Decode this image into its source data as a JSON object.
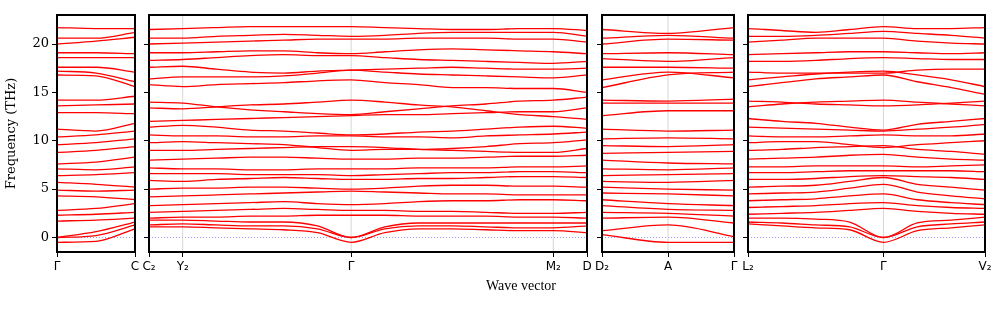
{
  "chart_data": [
    {
      "type": "line",
      "ylabel": "Frequency (THz)",
      "ylim": [
        -1.5,
        23
      ],
      "yticks": [
        0,
        5,
        10,
        15,
        20
      ],
      "categories": [
        "Γ",
        null,
        "C"
      ],
      "legend": false,
      "marker": "none",
      "line_style": "solid",
      "ref_lines": [
        {
          "axis": "y",
          "value": 0,
          "color": "#8080ff",
          "line_style": "dotted"
        }
      ],
      "series": [
        {
          "color": "#ff0000",
          "values": [
            -0.5,
            -0.4,
            0.9
          ]
        },
        {
          "color": "#ff0000",
          "values": [
            0,
            0.2,
            1.3
          ]
        },
        {
          "color": "#ff0000",
          "values": [
            0,
            0.6,
            1.6
          ]
        },
        {
          "color": "#ff0000",
          "values": [
            1.7,
            1.8,
            2.0
          ]
        },
        {
          "color": "#ff0000",
          "values": [
            2.3,
            2.4,
            2.6
          ]
        },
        {
          "color": "#ff0000",
          "values": [
            2.8,
            3.0,
            3.5
          ]
        },
        {
          "color": "#ff0000",
          "values": [
            4.3,
            4.2,
            3.9
          ]
        },
        {
          "color": "#ff0000",
          "values": [
            4.9,
            4.8,
            4.9
          ]
        },
        {
          "color": "#ff0000",
          "values": [
            5.7,
            5.5,
            5.2
          ]
        },
        {
          "color": "#ff0000",
          "values": [
            6.4,
            6.5,
            6.7
          ]
        },
        {
          "color": "#ff0000",
          "values": [
            7.1,
            7.0,
            7.3
          ]
        },
        {
          "color": "#ff0000",
          "values": [
            7.6,
            7.8,
            8.3
          ]
        },
        {
          "color": "#ff0000",
          "values": [
            8.8,
            9.0,
            9.4
          ]
        },
        {
          "color": "#ff0000",
          "values": [
            9.6,
            9.8,
            10.2
          ]
        },
        {
          "color": "#ff0000",
          "values": [
            10.4,
            10.6,
            11.0
          ]
        },
        {
          "color": "#ff0000",
          "values": [
            11.2,
            11.0,
            11.8
          ]
        },
        {
          "color": "#ff0000",
          "values": [
            12.9,
            12.9,
            12.8
          ]
        },
        {
          "color": "#ff0000",
          "values": [
            13.6,
            13.7,
            13.8
          ]
        },
        {
          "color": "#ff0000",
          "values": [
            14.2,
            14.2,
            14.6
          ]
        },
        {
          "color": "#ff0000",
          "values": [
            16.8,
            16.7,
            15.6
          ]
        },
        {
          "color": "#ff0000",
          "values": [
            17.2,
            17.0,
            16.1
          ]
        },
        {
          "color": "#ff0000",
          "values": [
            17.6,
            17.6,
            17.1
          ]
        },
        {
          "color": "#ff0000",
          "values": [
            18.6,
            18.6,
            18.6
          ]
        },
        {
          "color": "#ff0000",
          "values": [
            19.1,
            19.1,
            19.0
          ]
        },
        {
          "color": "#ff0000",
          "values": [
            20.0,
            20.3,
            20.7
          ]
        },
        {
          "color": "#ff0000",
          "values": [
            20.6,
            20.6,
            21.2
          ]
        },
        {
          "color": "#ff0000",
          "values": [
            21.7,
            21.6,
            21.6
          ]
        }
      ]
    },
    {
      "type": "line",
      "xlabel": "Wave vector",
      "ylim": [
        -1.5,
        23
      ],
      "yticks": [
        0,
        5,
        10,
        15,
        20
      ],
      "categories": [
        "C₂",
        "Y₂",
        null,
        null,
        null,
        null,
        "Γ",
        null,
        null,
        null,
        null,
        null,
        "M₂",
        "D"
      ],
      "tick_labels": "x",
      "legend": false,
      "marker": "none",
      "line_style": "solid",
      "ref_lines": [
        {
          "axis": "y",
          "value": 0,
          "color": "#8080ff",
          "line_style": "dotted"
        },
        {
          "axis": "x",
          "value": "Y₂",
          "color": "#cccccc",
          "line_style": "solid"
        },
        {
          "axis": "x",
          "value": "Γ",
          "color": "#cccccc",
          "line_style": "solid"
        },
        {
          "axis": "x",
          "value": "M₂",
          "color": "#cccccc",
          "line_style": "solid"
        }
      ],
      "series": [
        {
          "color": "#ff0000",
          "values": [
            1.1,
            1.1,
            1.0,
            0.9,
            0.8,
            0.5,
            -0.5,
            0.5,
            0.9,
            0.9,
            0.8,
            0.7,
            0.7,
            0.5
          ]
        },
        {
          "color": "#ff0000",
          "values": [
            1.3,
            1.4,
            1.3,
            1.2,
            1.2,
            0.9,
            0,
            0.9,
            1.2,
            1.2,
            1.1,
            1.0,
            1.0,
            1.2
          ]
        },
        {
          "color": "#ff0000",
          "values": [
            1.8,
            1.8,
            1.7,
            1.6,
            1.6,
            1.2,
            0,
            1.1,
            1.5,
            1.5,
            1.5,
            1.5,
            1.5,
            1.5
          ]
        },
        {
          "color": "#ff0000",
          "values": [
            2.0,
            2.1,
            2.1,
            2.2,
            2.2,
            2.3,
            2.3,
            2.3,
            2.2,
            2.2,
            2.2,
            2.1,
            2.1,
            2.0
          ]
        },
        {
          "color": "#ff0000",
          "values": [
            2.6,
            2.7,
            2.8,
            2.9,
            3.0,
            2.9,
            2.8,
            2.8,
            2.7,
            2.7,
            2.6,
            2.5,
            2.5,
            2.6
          ]
        },
        {
          "color": "#ff0000",
          "values": [
            3.3,
            3.4,
            3.5,
            3.6,
            3.7,
            3.5,
            3.4,
            3.5,
            3.7,
            3.8,
            3.8,
            3.9,
            3.9,
            3.8
          ]
        },
        {
          "color": "#ff0000",
          "values": [
            4.2,
            4.3,
            4.4,
            4.5,
            4.6,
            4.7,
            4.8,
            4.7,
            4.6,
            4.5,
            4.5,
            4.4,
            4.4,
            4.4
          ]
        },
        {
          "color": "#ff0000",
          "values": [
            5.0,
            5.1,
            5.1,
            5.2,
            5.2,
            5.1,
            5.0,
            5.1,
            5.3,
            5.4,
            5.4,
            5.3,
            5.3,
            5.2
          ]
        },
        {
          "color": "#ff0000",
          "values": [
            5.9,
            5.8,
            6.0,
            6.1,
            6.2,
            6.1,
            6.0,
            6.0,
            6.1,
            6.1,
            6.2,
            6.3,
            6.3,
            6.2
          ]
        },
        {
          "color": "#ff0000",
          "values": [
            6.6,
            6.6,
            6.6,
            6.5,
            6.5,
            6.5,
            6.4,
            6.5,
            6.6,
            6.7,
            6.7,
            6.8,
            6.8,
            6.7
          ]
        },
        {
          "color": "#ff0000",
          "values": [
            7.2,
            7.1,
            7.1,
            7.0,
            7.0,
            7.1,
            7.1,
            7.1,
            7.2,
            7.2,
            7.2,
            7.3,
            7.3,
            7.4
          ]
        },
        {
          "color": "#ff0000",
          "values": [
            8.0,
            8.1,
            8.2,
            8.3,
            8.3,
            8.2,
            8.1,
            8.1,
            8.2,
            8.2,
            8.3,
            8.4,
            8.4,
            8.5
          ]
        },
        {
          "color": "#ff0000",
          "values": [
            9.0,
            9.0,
            9.1,
            9.2,
            9.3,
            9.4,
            9.4,
            9.3,
            9.1,
            9.0,
            8.9,
            8.8,
            8.8,
            9.2
          ]
        },
        {
          "color": "#ff0000",
          "values": [
            9.8,
            9.9,
            9.8,
            9.7,
            9.6,
            9.3,
            9.0,
            9.1,
            9.1,
            9.2,
            9.4,
            9.7,
            9.8,
            10.1
          ]
        },
        {
          "color": "#ff0000",
          "values": [
            10.6,
            10.5,
            10.5,
            10.4,
            10.4,
            10.5,
            10.5,
            10.4,
            10.4,
            10.3,
            10.5,
            10.6,
            10.7,
            10.9
          ]
        },
        {
          "color": "#ff0000",
          "values": [
            11.4,
            11.6,
            11.4,
            11.1,
            11.0,
            10.8,
            10.6,
            10.7,
            10.9,
            11.0,
            11.2,
            11.4,
            11.5,
            11.3
          ]
        },
        {
          "color": "#ff0000",
          "values": [
            12.0,
            12.1,
            12.2,
            12.3,
            12.4,
            12.5,
            12.6,
            12.7,
            12.7,
            12.8,
            12.9,
            13.0,
            13.0,
            13.4
          ]
        },
        {
          "color": "#ff0000",
          "values": [
            13.4,
            13.3,
            13.5,
            13.7,
            13.8,
            14.0,
            14.2,
            14.0,
            13.7,
            13.5,
            13.1,
            12.7,
            12.5,
            12.2
          ]
        },
        {
          "color": "#ff0000",
          "values": [
            14.0,
            13.9,
            13.5,
            13.2,
            13.0,
            12.8,
            12.7,
            13.0,
            13.3,
            13.6,
            13.8,
            14.1,
            14.2,
            14.5
          ]
        },
        {
          "color": "#ff0000",
          "values": [
            15.8,
            15.6,
            15.8,
            15.9,
            16.0,
            16.2,
            16.3,
            16.0,
            15.8,
            15.5,
            15.5,
            15.4,
            15.4,
            15.0
          ]
        },
        {
          "color": "#ff0000",
          "values": [
            16.4,
            16.6,
            16.6,
            16.6,
            16.7,
            17.0,
            17.3,
            17.1,
            16.9,
            16.8,
            16.7,
            16.6,
            16.5,
            16.8
          ]
        },
        {
          "color": "#ff0000",
          "values": [
            17.6,
            17.7,
            17.4,
            17.1,
            17.0,
            17.2,
            17.3,
            17.4,
            17.5,
            17.6,
            17.5,
            17.4,
            17.4,
            17.5
          ]
        },
        {
          "color": "#ff0000",
          "values": [
            18.3,
            18.4,
            18.6,
            18.8,
            18.9,
            18.8,
            18.8,
            18.6,
            18.4,
            18.3,
            18.2,
            18.1,
            18.0,
            18.2
          ]
        },
        {
          "color": "#ff0000",
          "values": [
            19.1,
            19.1,
            19.2,
            19.3,
            19.3,
            19.1,
            19.0,
            19.2,
            19.4,
            19.5,
            19.4,
            19.3,
            19.2,
            19.0
          ]
        },
        {
          "color": "#ff0000",
          "values": [
            20.0,
            20.1,
            20.2,
            20.3,
            20.4,
            20.5,
            20.5,
            20.5,
            20.6,
            20.6,
            20.6,
            20.5,
            20.5,
            20.2
          ]
        },
        {
          "color": "#ff0000",
          "values": [
            20.6,
            20.6,
            20.8,
            20.9,
            21.0,
            20.9,
            20.8,
            20.9,
            21.1,
            21.2,
            21.2,
            21.2,
            21.2,
            20.8
          ]
        },
        {
          "color": "#ff0000",
          "values": [
            21.5,
            21.6,
            21.7,
            21.8,
            21.8,
            21.8,
            21.8,
            21.7,
            21.6,
            21.5,
            21.5,
            21.6,
            21.6,
            21.4
          ]
        }
      ]
    },
    {
      "type": "line",
      "ylim": [
        -1.5,
        23
      ],
      "yticks": [
        0,
        5,
        10,
        15,
        20
      ],
      "categories": [
        "D₂",
        "A",
        "Γ"
      ],
      "tick_labels": "x",
      "legend": false,
      "marker": "none",
      "line_style": "solid",
      "ref_lines": [
        {
          "axis": "y",
          "value": 0,
          "color": "#8080ff",
          "line_style": "dotted"
        },
        {
          "axis": "x",
          "value": "A",
          "color": "#cccccc",
          "line_style": "solid"
        }
      ],
      "series": [
        {
          "color": "#ff0000",
          "values": [
            0.3,
            -0.5,
            -0.5
          ]
        },
        {
          "color": "#ff0000",
          "values": [
            0.7,
            1.3,
            0.1
          ]
        },
        {
          "color": "#ff0000",
          "values": [
            2.0,
            2.1,
            1.5
          ]
        },
        {
          "color": "#ff0000",
          "values": [
            2.6,
            2.5,
            2.2
          ]
        },
        {
          "color": "#ff0000",
          "values": [
            3.3,
            2.9,
            2.8
          ]
        },
        {
          "color": "#ff0000",
          "values": [
            3.9,
            3.5,
            3.3
          ]
        },
        {
          "color": "#ff0000",
          "values": [
            4.6,
            4.5,
            4.3
          ]
        },
        {
          "color": "#ff0000",
          "values": [
            5.2,
            5.0,
            4.9
          ]
        },
        {
          "color": "#ff0000",
          "values": [
            5.8,
            5.7,
            5.9
          ]
        },
        {
          "color": "#ff0000",
          "values": [
            6.4,
            6.5,
            6.6
          ]
        },
        {
          "color": "#ff0000",
          "values": [
            7.1,
            7.0,
            7.2
          ]
        },
        {
          "color": "#ff0000",
          "values": [
            8.0,
            7.7,
            7.6
          ]
        },
        {
          "color": "#ff0000",
          "values": [
            8.7,
            8.8,
            8.9
          ]
        },
        {
          "color": "#ff0000",
          "values": [
            9.5,
            9.4,
            9.6
          ]
        },
        {
          "color": "#ff0000",
          "values": [
            10.2,
            10.3,
            10.2
          ]
        },
        {
          "color": "#ff0000",
          "values": [
            11.2,
            11.0,
            11.1
          ]
        },
        {
          "color": "#ff0000",
          "values": [
            12.6,
            13.1,
            13.1
          ]
        },
        {
          "color": "#ff0000",
          "values": [
            13.9,
            13.9,
            13.9
          ]
        },
        {
          "color": "#ff0000",
          "values": [
            14.2,
            14.1,
            14.3
          ]
        },
        {
          "color": "#ff0000",
          "values": [
            15.5,
            16.8,
            17.1
          ]
        },
        {
          "color": "#ff0000",
          "values": [
            16.3,
            17.1,
            16.5
          ]
        },
        {
          "color": "#ff0000",
          "values": [
            17.6,
            17.6,
            17.5
          ]
        },
        {
          "color": "#ff0000",
          "values": [
            18.5,
            18.2,
            18.6
          ]
        },
        {
          "color": "#ff0000",
          "values": [
            19.0,
            19.1,
            18.9
          ]
        },
        {
          "color": "#ff0000",
          "values": [
            20.0,
            20.5,
            20.4
          ]
        },
        {
          "color": "#ff0000",
          "values": [
            20.6,
            20.9,
            20.6
          ]
        },
        {
          "color": "#ff0000",
          "values": [
            21.5,
            21.1,
            21.7
          ]
        }
      ]
    },
    {
      "type": "line",
      "ylim": [
        -1.5,
        23
      ],
      "yticks": [
        0,
        5,
        10,
        15,
        20
      ],
      "categories": [
        "L₂",
        null,
        null,
        null,
        "Γ",
        null,
        null,
        "V₂"
      ],
      "tick_labels": "x",
      "legend": false,
      "marker": "none",
      "line_style": "solid",
      "ref_lines": [
        {
          "axis": "y",
          "value": 0,
          "color": "#8080ff",
          "line_style": "dotted"
        },
        {
          "axis": "x",
          "value": "Γ",
          "color": "#cccccc",
          "line_style": "solid"
        }
      ],
      "series": [
        {
          "color": "#ff0000",
          "values": [
            1.4,
            1.2,
            1.0,
            0.8,
            -0.5,
            0.7,
            1.0,
            1.3
          ]
        },
        {
          "color": "#ff0000",
          "values": [
            1.6,
            1.5,
            1.3,
            1.1,
            0,
            1.1,
            1.4,
            1.6
          ]
        },
        {
          "color": "#ff0000",
          "values": [
            2.0,
            2.0,
            1.9,
            1.6,
            0,
            1.5,
            1.8,
            2.1
          ]
        },
        {
          "color": "#ff0000",
          "values": [
            2.4,
            2.5,
            2.6,
            2.8,
            3.0,
            2.7,
            2.5,
            2.4
          ]
        },
        {
          "color": "#ff0000",
          "values": [
            3.1,
            3.2,
            3.3,
            3.5,
            3.6,
            3.3,
            3.1,
            3.0
          ]
        },
        {
          "color": "#ff0000",
          "values": [
            3.8,
            3.9,
            4.0,
            4.3,
            4.5,
            3.9,
            3.6,
            3.4
          ]
        },
        {
          "color": "#ff0000",
          "values": [
            4.5,
            4.6,
            4.7,
            5.1,
            5.5,
            4.7,
            4.3,
            4.0
          ]
        },
        {
          "color": "#ff0000",
          "values": [
            5.2,
            5.3,
            5.4,
            5.8,
            6.2,
            5.5,
            5.2,
            4.9
          ]
        },
        {
          "color": "#ff0000",
          "values": [
            6.0,
            6.0,
            6.1,
            6.3,
            6.4,
            6.3,
            6.2,
            6.0
          ]
        },
        {
          "color": "#ff0000",
          "values": [
            6.7,
            6.7,
            6.8,
            6.9,
            6.9,
            6.9,
            6.9,
            6.8
          ]
        },
        {
          "color": "#ff0000",
          "values": [
            7.3,
            7.3,
            7.4,
            7.4,
            7.4,
            7.3,
            7.4,
            7.5
          ]
        },
        {
          "color": "#ff0000",
          "values": [
            8.1,
            8.2,
            8.3,
            8.5,
            8.6,
            8.3,
            8.1,
            8.0
          ]
        },
        {
          "color": "#ff0000",
          "values": [
            9.0,
            9.1,
            9.3,
            9.4,
            9.5,
            9.1,
            8.9,
            8.6
          ]
        },
        {
          "color": "#ff0000",
          "values": [
            9.8,
            9.9,
            9.9,
            9.6,
            9.3,
            9.6,
            9.8,
            10.0
          ]
        },
        {
          "color": "#ff0000",
          "values": [
            10.5,
            10.4,
            10.4,
            10.5,
            10.6,
            10.5,
            10.5,
            10.7
          ]
        },
        {
          "color": "#ff0000",
          "values": [
            11.4,
            11.3,
            11.2,
            11.1,
            11.0,
            11.2,
            11.4,
            11.7
          ]
        },
        {
          "color": "#ff0000",
          "values": [
            12.3,
            12.0,
            11.8,
            11.4,
            11.1,
            11.7,
            12.0,
            12.3
          ]
        },
        {
          "color": "#ff0000",
          "values": [
            13.5,
            13.8,
            14.0,
            14.1,
            14.2,
            14.0,
            13.8,
            13.6
          ]
        },
        {
          "color": "#ff0000",
          "values": [
            14.1,
            14.0,
            13.8,
            13.7,
            13.6,
            13.7,
            13.9,
            14.1
          ]
        },
        {
          "color": "#ff0000",
          "values": [
            15.6,
            16.0,
            16.4,
            16.6,
            16.8,
            16.1,
            15.5,
            14.8
          ]
        },
        {
          "color": "#ff0000",
          "values": [
            16.3,
            16.6,
            16.9,
            17.1,
            17.2,
            16.8,
            16.3,
            15.6
          ]
        },
        {
          "color": "#ff0000",
          "values": [
            17.1,
            17.0,
            17.0,
            17.0,
            17.0,
            17.3,
            17.4,
            17.4
          ]
        },
        {
          "color": "#ff0000",
          "values": [
            18.2,
            18.2,
            18.3,
            18.5,
            18.6,
            18.5,
            18.4,
            18.4
          ]
        },
        {
          "color": "#ff0000",
          "values": [
            18.9,
            19.0,
            19.1,
            19.2,
            19.2,
            19.1,
            19.0,
            19.1
          ]
        },
        {
          "color": "#ff0000",
          "values": [
            20.2,
            20.4,
            20.6,
            20.6,
            20.6,
            20.3,
            20.1,
            20.0
          ]
        },
        {
          "color": "#ff0000",
          "values": [
            20.8,
            20.8,
            20.9,
            21.1,
            21.3,
            21.1,
            20.9,
            20.6
          ]
        },
        {
          "color": "#ff0000",
          "values": [
            21.6,
            21.4,
            21.2,
            21.5,
            21.8,
            21.6,
            21.6,
            21.7
          ]
        }
      ]
    }
  ]
}
